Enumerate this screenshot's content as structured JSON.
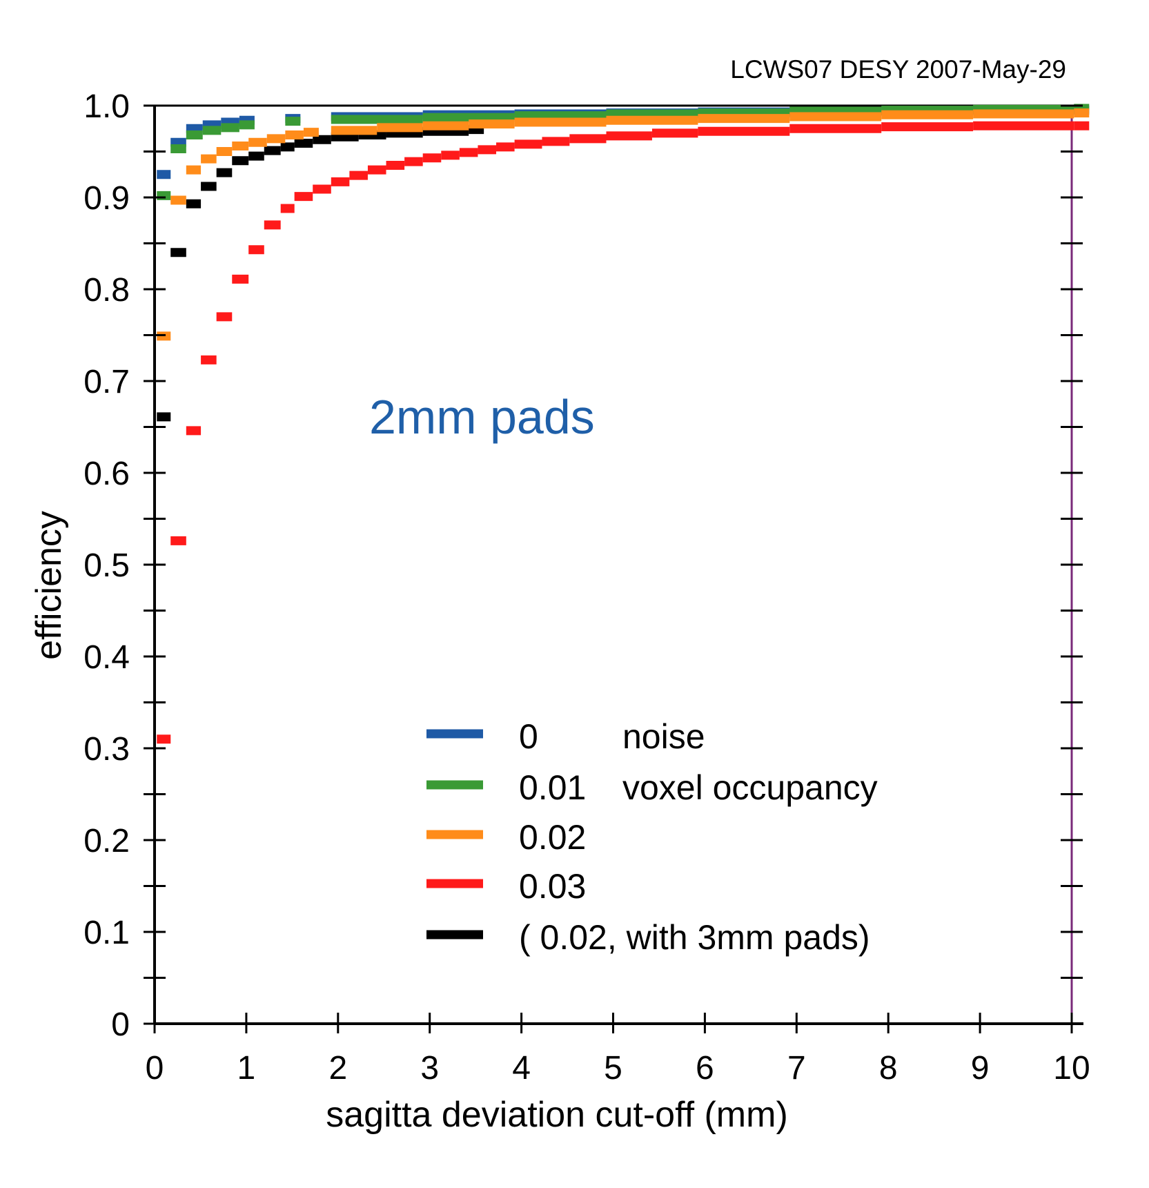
{
  "header_note": "LCWS07 DESY 2007-May-29",
  "annotation": "2mm pads",
  "legend": {
    "col1": [
      "0",
      "0.01",
      "0.02",
      "0.03",
      "( 0.02, with 3mm pads)"
    ],
    "col2": [
      "noise",
      "voxel occupancy",
      "",
      "",
      ""
    ]
  },
  "colors": {
    "blue": "#1f5aa6",
    "green": "#3a9a35",
    "orange": "#ff8c1a",
    "red": "#ff1a1a",
    "black": "#000000",
    "right_line": "#7a2a7a"
  },
  "chart_data": {
    "type": "line",
    "xlabel": "sagitta deviation cut-off (mm)",
    "ylabel": "efficiency",
    "xlim": [
      0,
      10
    ],
    "ylim": [
      0,
      1.0
    ],
    "x_ticks": [
      "0",
      "1",
      "2",
      "3",
      "4",
      "5",
      "6",
      "7",
      "8",
      "9",
      "10"
    ],
    "y_ticks": [
      "0",
      "0.1",
      "0.2",
      "0.3",
      "0.4",
      "0.5",
      "0.6",
      "0.7",
      "0.8",
      "0.9",
      "1.0"
    ],
    "grid": false,
    "legend_position": "bottom-center",
    "series": [
      {
        "name": "0 noise",
        "color": "#1f5aa6",
        "x": [
          0.1,
          0.25,
          0.42,
          0.6,
          0.8,
          1.0,
          1.5,
          2,
          3,
          4,
          5,
          6,
          7,
          8,
          9,
          10.1
        ],
        "y": [
          0.925,
          0.96,
          0.975,
          0.979,
          0.982,
          0.984,
          0.986,
          0.988,
          0.99,
          0.991,
          0.992,
          0.993,
          0.994,
          0.994,
          0.995,
          0.995
        ]
      },
      {
        "name": "0.01 voxel occupancy",
        "color": "#3a9a35",
        "x": [
          0.1,
          0.25,
          0.42,
          0.6,
          0.8,
          1.0,
          1.5,
          2,
          3,
          4,
          5,
          6,
          7,
          8,
          9,
          10.1
        ],
        "y": [
          0.902,
          0.953,
          0.968,
          0.973,
          0.976,
          0.979,
          0.983,
          0.985,
          0.987,
          0.989,
          0.991,
          0.992,
          0.994,
          0.995,
          0.996,
          0.997
        ]
      },
      {
        "name": "0.02",
        "color": "#ff8c1a",
        "x": [
          0.1,
          0.25,
          0.42,
          0.58,
          0.75,
          0.92,
          1.1,
          1.3,
          1.5,
          1.7,
          2,
          2.5,
          3,
          3.5,
          4,
          5,
          6,
          7,
          8,
          9,
          10.1
        ],
        "y": [
          0.749,
          0.897,
          0.93,
          0.942,
          0.95,
          0.956,
          0.96,
          0.964,
          0.968,
          0.971,
          0.973,
          0.976,
          0.978,
          0.98,
          0.982,
          0.984,
          0.986,
          0.988,
          0.99,
          0.991,
          0.992
        ]
      },
      {
        "name": "0.03",
        "color": "#ff1a1a",
        "x": [
          0.1,
          0.25,
          0.42,
          0.58,
          0.75,
          0.92,
          1.1,
          1.27,
          1.45,
          1.6,
          1.8,
          2,
          2.2,
          2.4,
          2.6,
          2.8,
          3,
          3.2,
          3.4,
          3.6,
          3.8,
          4,
          4.3,
          4.6,
          5,
          5.5,
          6,
          7,
          8,
          9,
          10.1
        ],
        "y": [
          0.31,
          0.526,
          0.646,
          0.723,
          0.77,
          0.811,
          0.843,
          0.87,
          0.888,
          0.901,
          0.909,
          0.917,
          0.924,
          0.93,
          0.935,
          0.939,
          0.943,
          0.946,
          0.949,
          0.952,
          0.955,
          0.958,
          0.961,
          0.964,
          0.967,
          0.97,
          0.972,
          0.975,
          0.977,
          0.978,
          0.978
        ]
      },
      {
        "name": "( 0.02, with 3mm pads)",
        "color": "#000000",
        "x": [
          0.1,
          0.25,
          0.42,
          0.58,
          0.75,
          0.92,
          1.1,
          1.27,
          1.45,
          1.6,
          1.8,
          2,
          2.3,
          2.6,
          3,
          3.5
        ],
        "y": [
          0.661,
          0.84,
          0.893,
          0.912,
          0.927,
          0.94,
          0.945,
          0.951,
          0.955,
          0.959,
          0.963,
          0.966,
          0.968,
          0.97,
          0.972,
          0.974
        ]
      }
    ]
  }
}
